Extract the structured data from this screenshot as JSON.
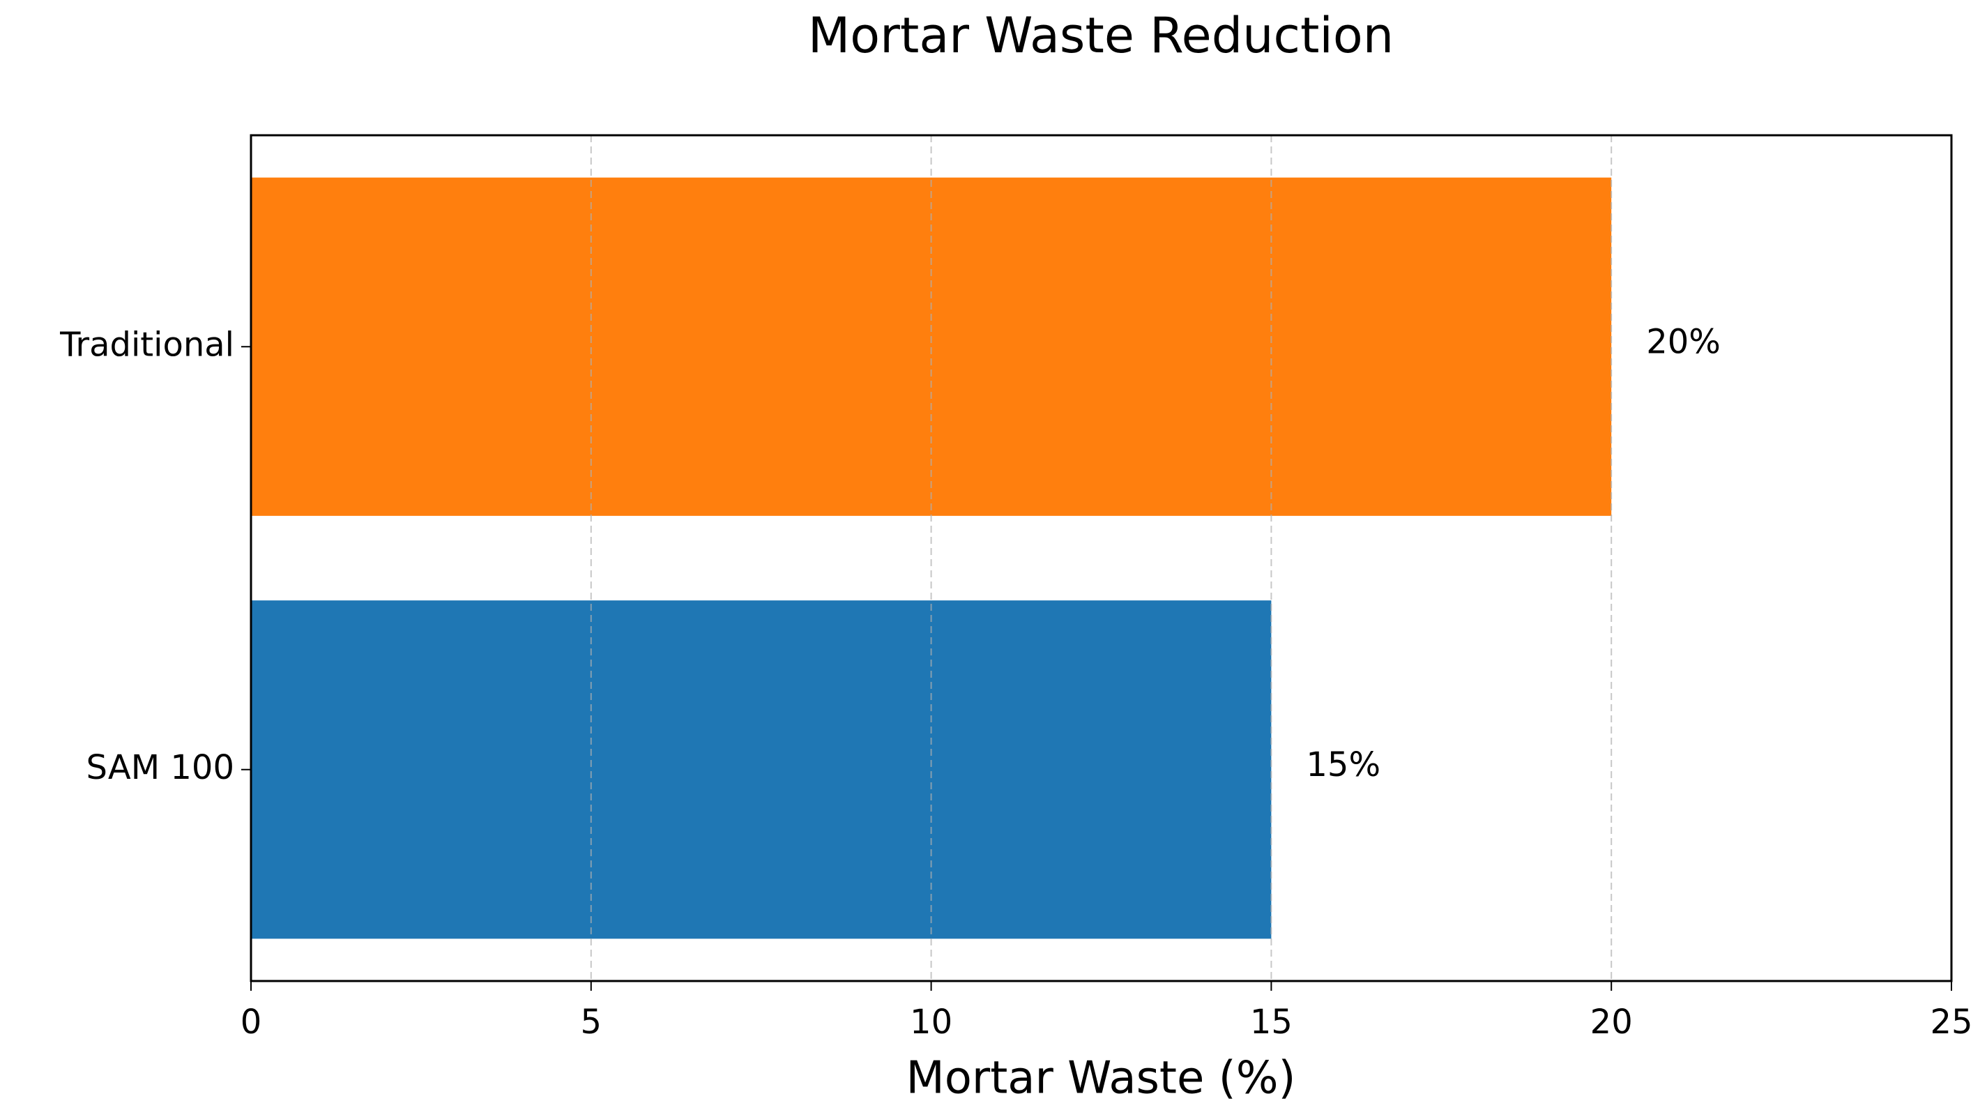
{
  "chart_data": {
    "type": "hbar",
    "title": "Mortar Waste Reduction",
    "xlabel": "Mortar Waste (%)",
    "categories": [
      "SAM 100",
      "Traditional"
    ],
    "values": [
      15,
      20
    ],
    "value_labels": [
      "15%",
      "20%"
    ],
    "colors": [
      "#1f77b4",
      "#ff7f0e"
    ],
    "xlim": [
      0,
      25
    ],
    "xticks": [
      0,
      5,
      10,
      15,
      20,
      25
    ],
    "grid": true
  }
}
